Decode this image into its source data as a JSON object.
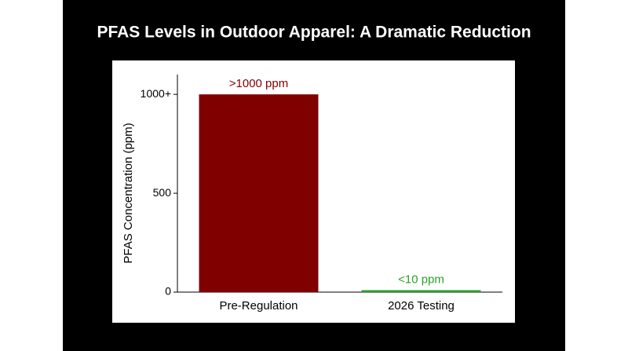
{
  "chart_data": {
    "type": "bar",
    "title": "PFAS Levels in Outdoor Apparel: A Dramatic Reduction",
    "ylabel": "PFAS Concentration (ppm)",
    "categories": [
      "Pre-Regulation",
      "2026 Testing"
    ],
    "values": [
      1000,
      10
    ],
    "value_labels": [
      ">1000 ppm",
      "<10 ppm"
    ],
    "colors": [
      "#800000",
      "#2ca02c"
    ],
    "ylim": [
      0,
      1100
    ],
    "yticks": [
      0,
      500,
      {
        "value": 1000,
        "label": "1000+"
      }
    ]
  }
}
